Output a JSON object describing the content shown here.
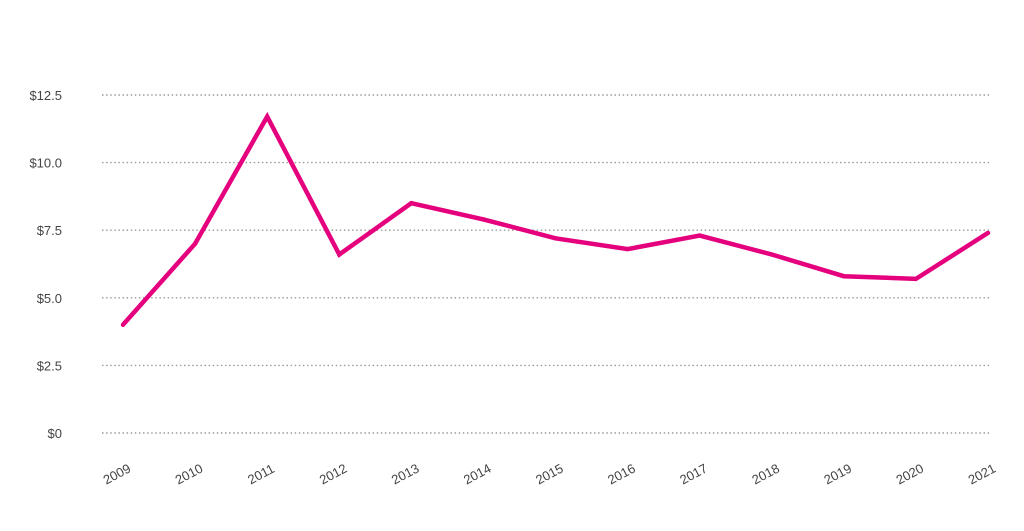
{
  "colors": {
    "series": "#e5007e",
    "grid": "#9a9a9a",
    "text": "#444444",
    "background": "#ffffff"
  },
  "chart_data": {
    "type": "line",
    "title": "",
    "xlabel": "",
    "ylabel": "",
    "grid": true,
    "grid_style": "dotted",
    "legend": "none",
    "ylim": [
      0,
      12.5
    ],
    "y_ticks": [
      0,
      2.5,
      5.0,
      7.5,
      10.0,
      12.5
    ],
    "y_tick_labels": [
      "$0",
      "$2.5",
      "$5.0",
      "$7.5",
      "$10.0",
      "$12.5"
    ],
    "categories": [
      "2009",
      "2010",
      "2011",
      "2012",
      "2013",
      "2014",
      "2015",
      "2016",
      "2017",
      "2018",
      "2019",
      "2020",
      "2021"
    ],
    "series": [
      {
        "values": [
          4.0,
          7.0,
          11.7,
          6.6,
          8.5,
          7.9,
          7.2,
          6.8,
          7.3,
          6.6,
          5.8,
          5.7,
          7.4
        ]
      }
    ]
  }
}
